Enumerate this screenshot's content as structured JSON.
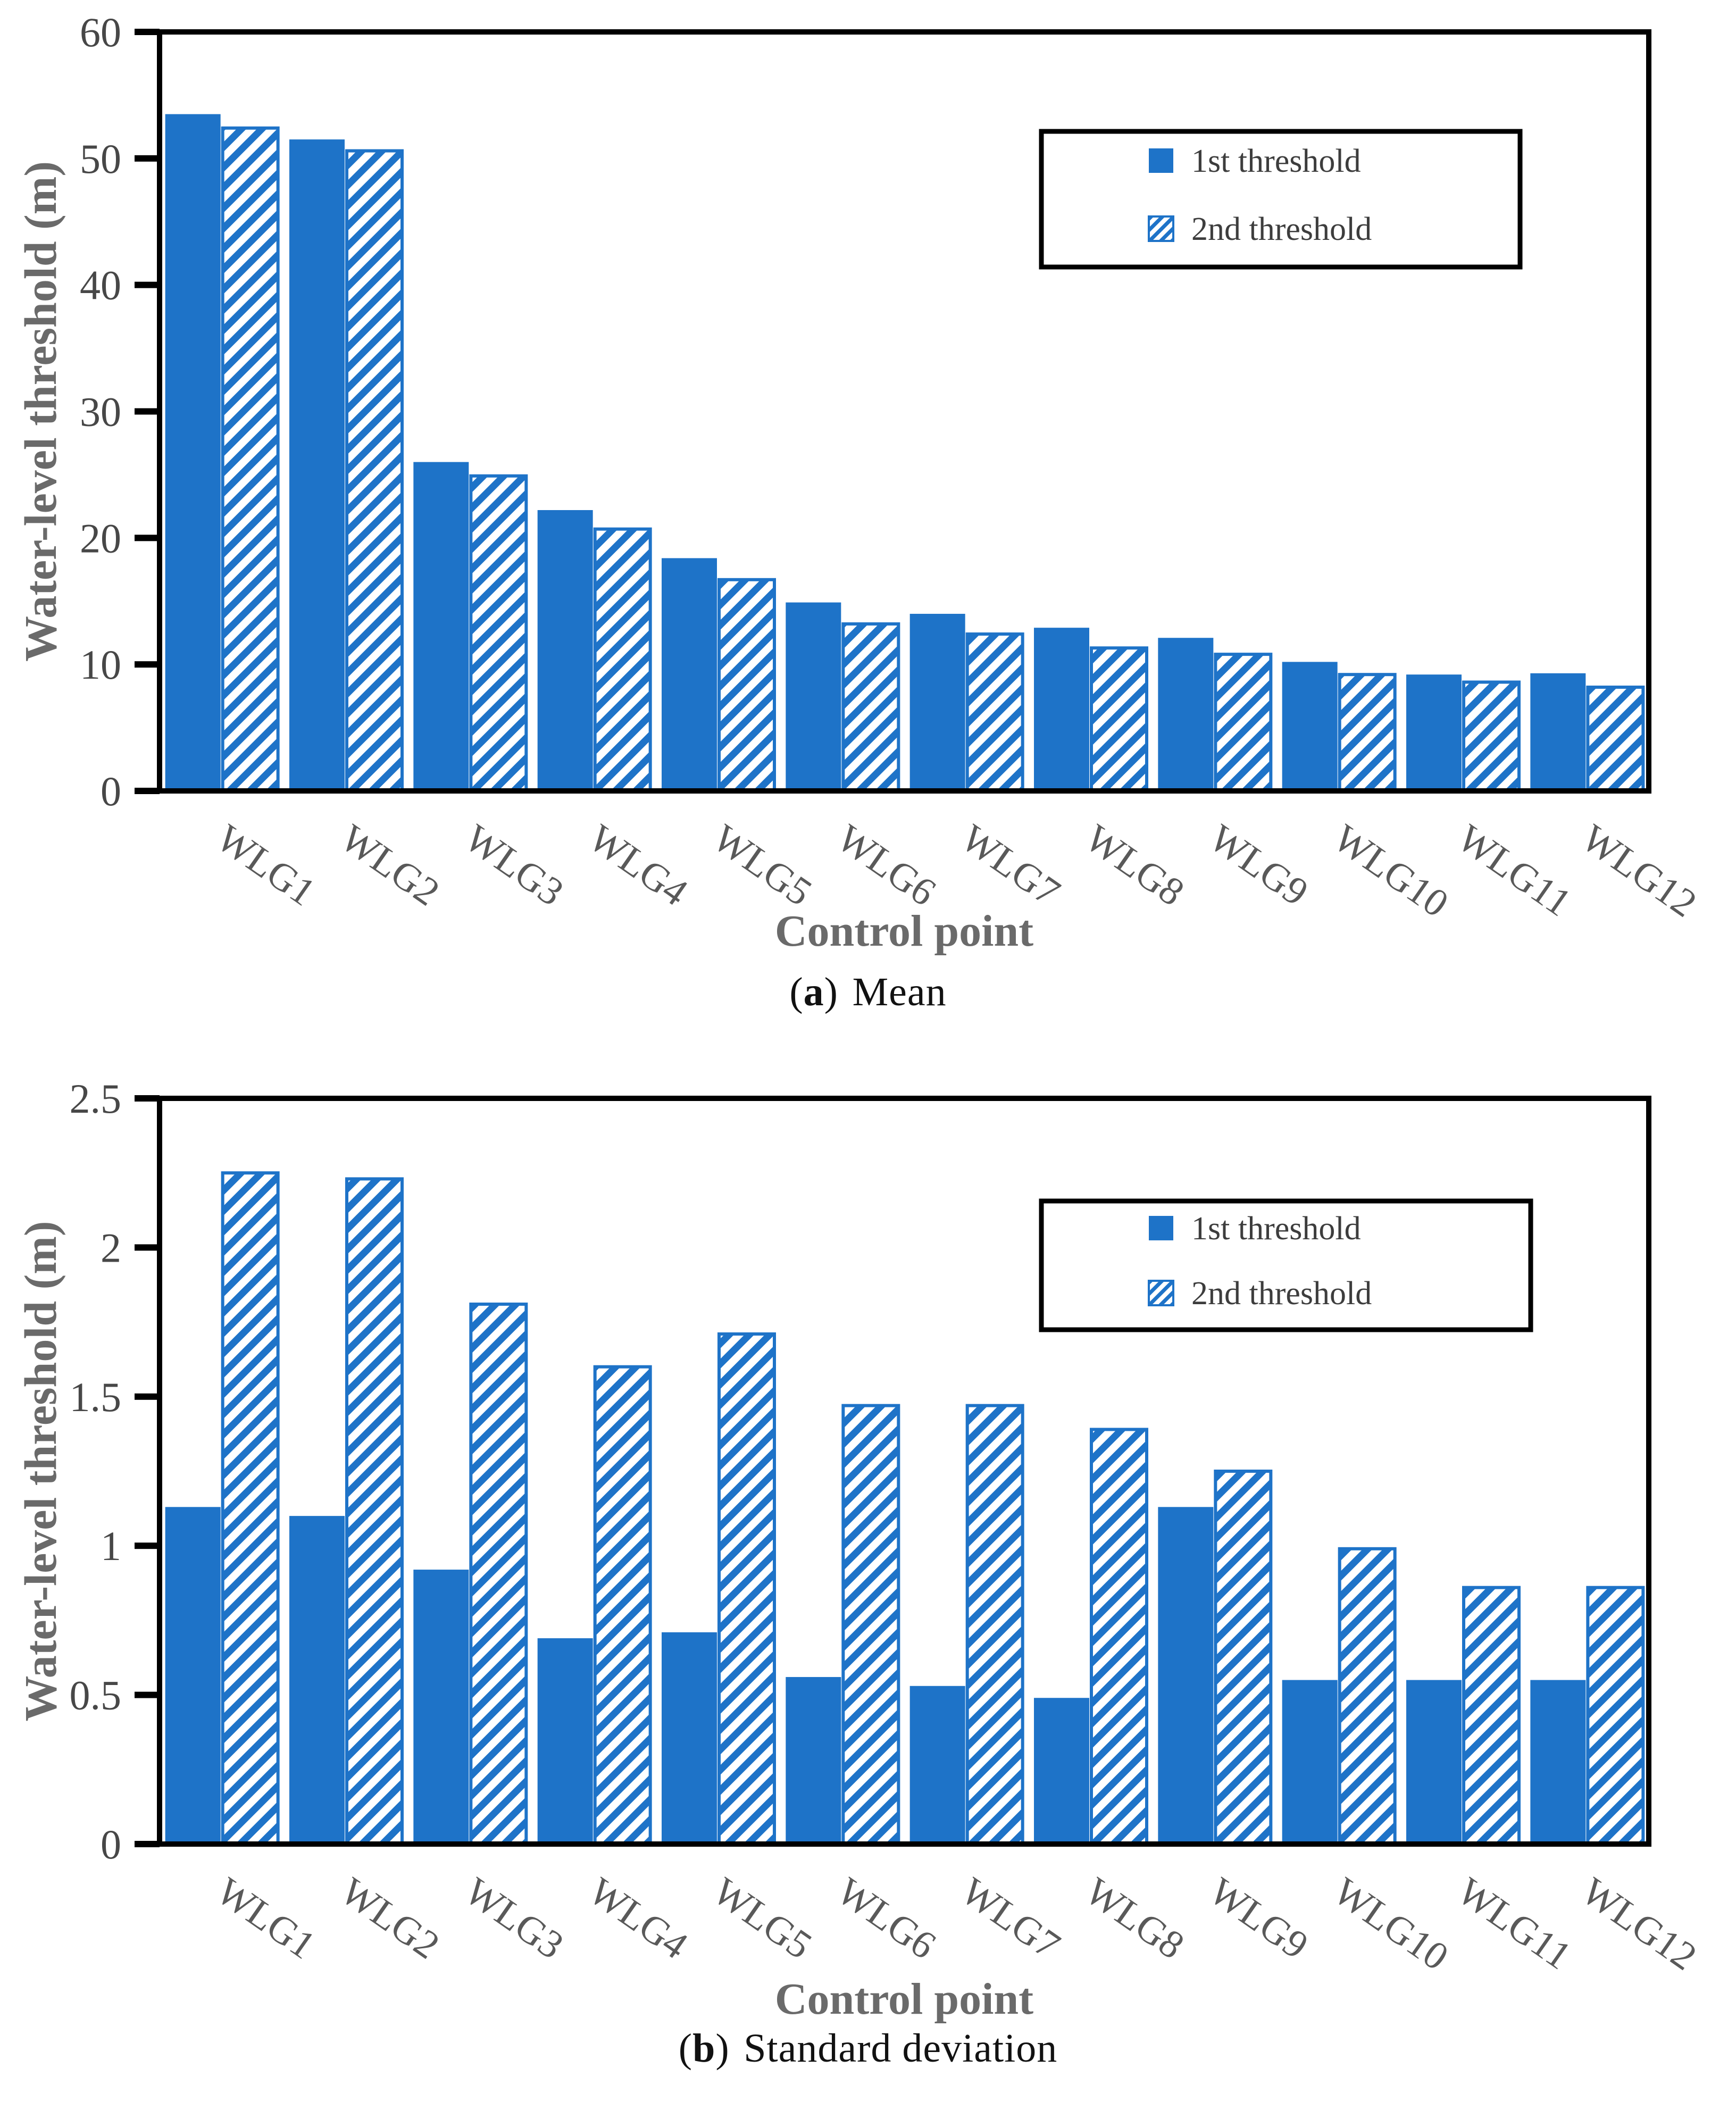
{
  "colors": {
    "bar_blue": "#1e73c8",
    "axis_black": "#000000",
    "tick_label_gray": "#474747",
    "category_label_gray": "#595959",
    "axis_title_gray": "#6a6a6a",
    "legend_text_gray": "#3d3d3d",
    "caption_black": "#111111",
    "background": "#ffffff"
  },
  "chart_data": [
    {
      "id": "a",
      "type": "bar",
      "caption": {
        "open": "(",
        "letter": "a",
        "close": ")",
        "text": "Mean"
      },
      "xlabel": "Control point",
      "ylabel": "Water-level threshold (m)",
      "categories": [
        "WLG1",
        "WLG2",
        "WLG3",
        "WLG4",
        "WLG5",
        "WLG6",
        "WLG7",
        "WLG8",
        "WLG9",
        "WLG10",
        "WLG11",
        "WLG12"
      ],
      "series": [
        {
          "name": "1st threshold",
          "style": "solid",
          "values": [
            53.5,
            51.5,
            26.0,
            22.2,
            18.4,
            14.9,
            14.0,
            12.9,
            12.1,
            10.2,
            9.2,
            9.3
          ]
        },
        {
          "name": "2nd threshold",
          "style": "hatch",
          "values": [
            52.4,
            50.6,
            24.9,
            20.7,
            16.7,
            13.2,
            12.4,
            11.3,
            10.8,
            9.2,
            8.6,
            8.2
          ]
        }
      ],
      "ylim": [
        0,
        60
      ],
      "ytick_step": 10,
      "ytick_labels": [
        "0",
        "10",
        "20",
        "30",
        "40",
        "50",
        "60"
      ],
      "grid": false,
      "legend_position": "upper-right"
    },
    {
      "id": "b",
      "type": "bar",
      "caption": {
        "open": "(",
        "letter": "b",
        "close": ")",
        "text": "Standard deviation"
      },
      "xlabel": "Control point",
      "ylabel": "Water-level threshold (m)",
      "categories": [
        "WLG1",
        "WLG2",
        "WLG3",
        "WLG4",
        "WLG5",
        "WLG6",
        "WLG7",
        "WLG8",
        "WLG9",
        "WLG10",
        "WLG11",
        "WLG12"
      ],
      "series": [
        {
          "name": "1st threshold",
          "style": "solid",
          "values": [
            1.13,
            1.1,
            0.92,
            0.69,
            0.71,
            0.56,
            0.53,
            0.49,
            1.13,
            0.55,
            0.55,
            0.55
          ]
        },
        {
          "name": "2nd threshold",
          "style": "hatch",
          "values": [
            2.25,
            2.23,
            1.81,
            1.6,
            1.71,
            1.47,
            1.47,
            1.39,
            1.25,
            0.99,
            0.86,
            0.86
          ]
        }
      ],
      "ylim": [
        0,
        2.5
      ],
      "ytick_step": 0.5,
      "ytick_labels": [
        "0",
        "0.5",
        "1",
        "1.5",
        "2",
        "2.5"
      ],
      "grid": false,
      "legend_position": "upper-right"
    }
  ]
}
